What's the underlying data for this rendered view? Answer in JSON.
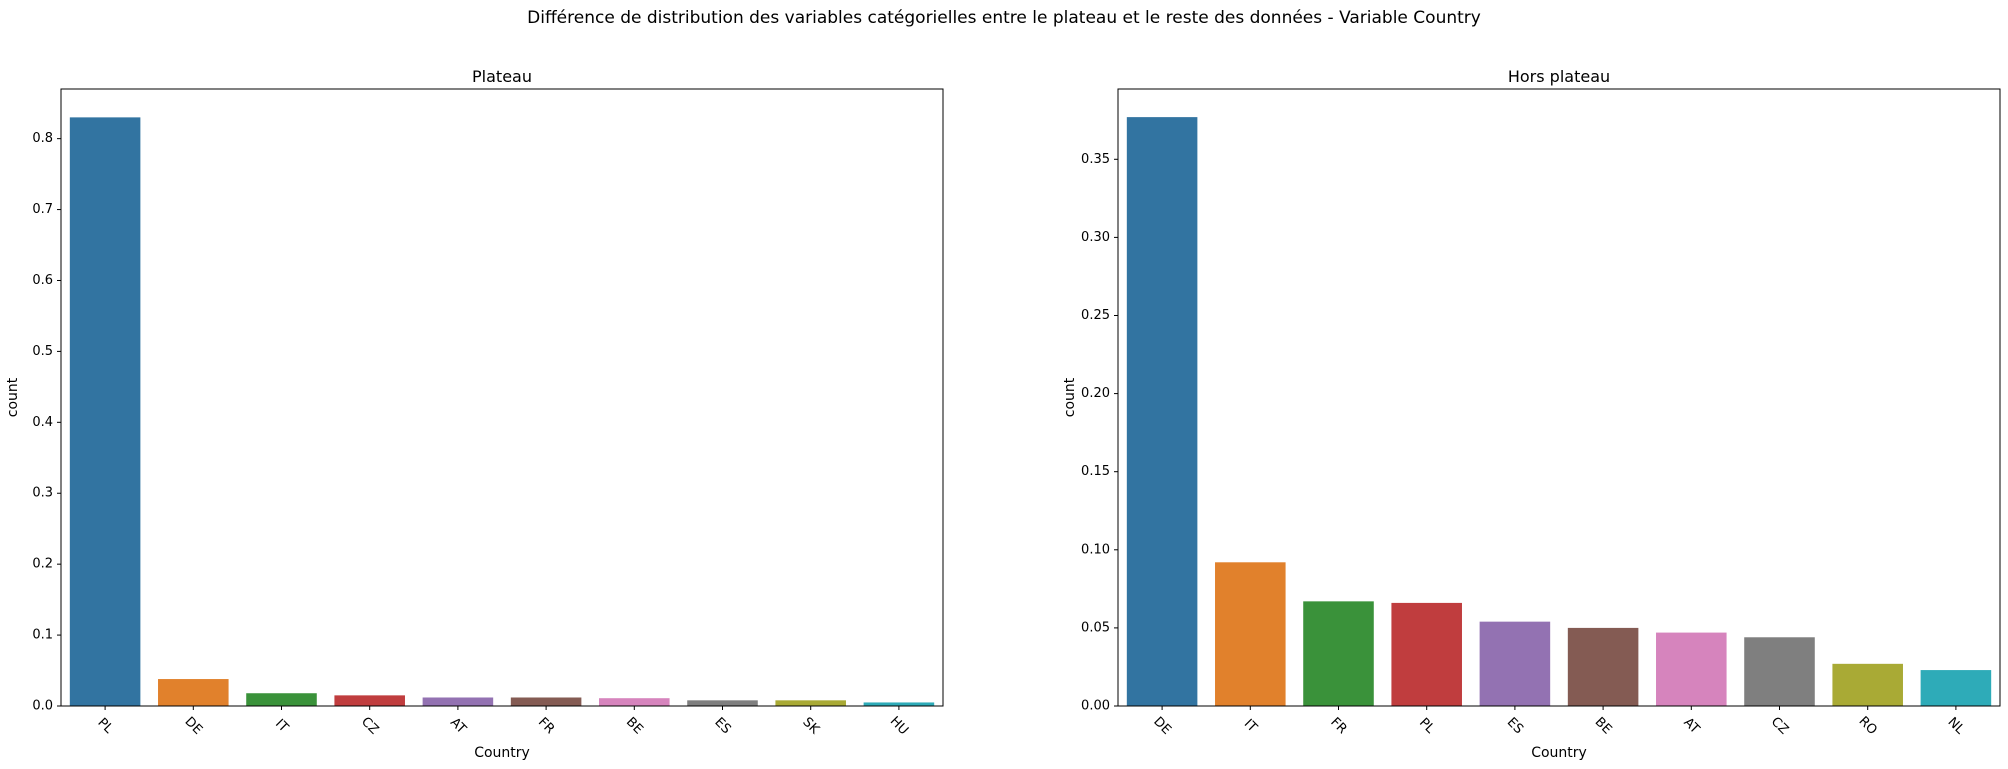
{
  "suptitle": "Différence de distribution des variables catégorielles entre le plateau et le reste des données - Variable Country",
  "colors": [
    "#3274a1",
    "#e1812c",
    "#3a923a",
    "#c03d3e",
    "#9372b2",
    "#845b53",
    "#d684bd",
    "#7f7f7f",
    "#a9aa35",
    "#2eabb8"
  ],
  "chart_data": [
    {
      "type": "bar",
      "title": "Plateau",
      "xlabel": "Country",
      "ylabel": "count",
      "categories": [
        "PL",
        "DE",
        "IT",
        "CZ",
        "AT",
        "FR",
        "BE",
        "ES",
        "SK",
        "HU"
      ],
      "values": [
        0.83,
        0.038,
        0.018,
        0.015,
        0.012,
        0.012,
        0.011,
        0.008,
        0.008,
        0.005
      ],
      "ylim": [
        0,
        0.87
      ],
      "yticks": [
        "0.0",
        "0.1",
        "0.2",
        "0.3",
        "0.4",
        "0.5",
        "0.6",
        "0.7",
        "0.8"
      ],
      "grid": false,
      "legend": "none"
    },
    {
      "type": "bar",
      "title": "Hors plateau",
      "xlabel": "Country",
      "ylabel": "count",
      "categories": [
        "DE",
        "IT",
        "FR",
        "PL",
        "ES",
        "BE",
        "AT",
        "CZ",
        "RO",
        "NL"
      ],
      "values": [
        0.377,
        0.092,
        0.067,
        0.066,
        0.054,
        0.05,
        0.047,
        0.044,
        0.027,
        0.023
      ],
      "ylim": [
        0,
        0.395
      ],
      "yticks": [
        "0.00",
        "0.05",
        "0.10",
        "0.15",
        "0.20",
        "0.25",
        "0.30",
        "0.35"
      ],
      "grid": false,
      "legend": "none"
    }
  ]
}
